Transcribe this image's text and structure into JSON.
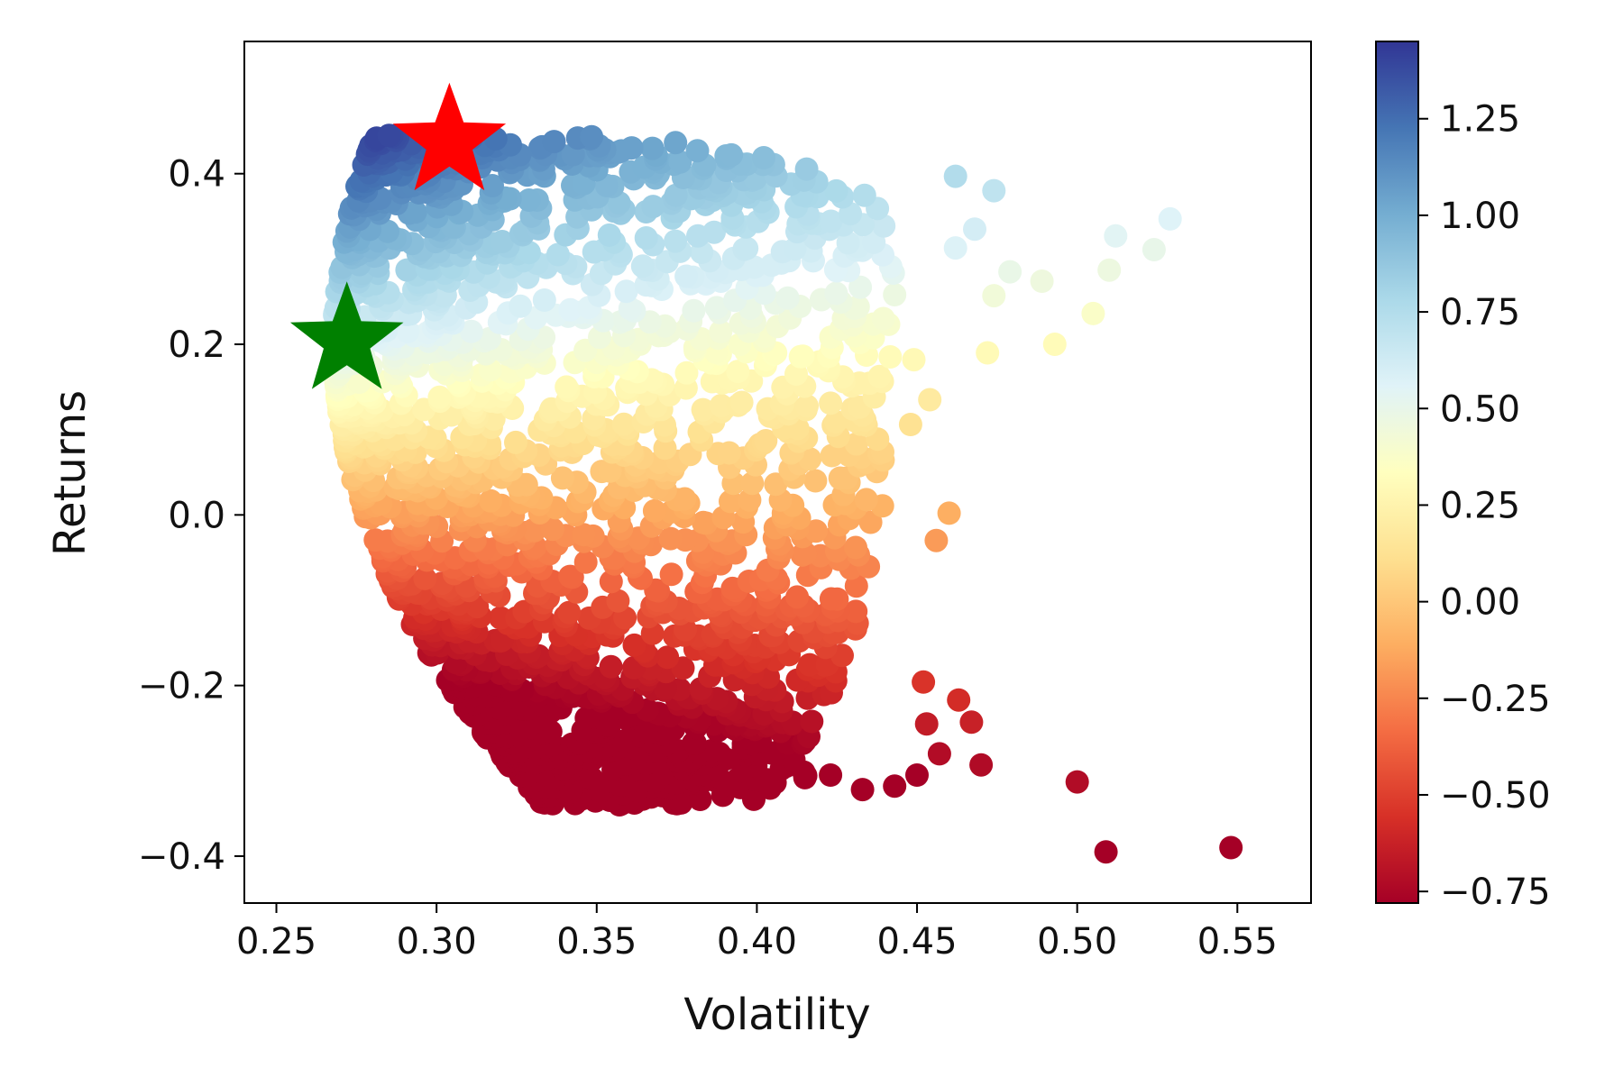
{
  "chart_data": {
    "type": "scatter",
    "title": "",
    "xlabel": "Volatility",
    "ylabel": "Returns",
    "xlim": [
      0.24,
      0.573
    ],
    "ylim": [
      -0.455,
      0.555
    ],
    "x_ticks": [
      0.25,
      0.3,
      0.35,
      0.4,
      0.45,
      0.5,
      0.55
    ],
    "x_tick_labels": [
      "0.25",
      "0.30",
      "0.35",
      "0.40",
      "0.45",
      "0.50",
      "0.55"
    ],
    "y_ticks": [
      -0.4,
      -0.2,
      0.0,
      0.2,
      0.4
    ],
    "y_tick_labels": [
      "−0.4",
      "−0.2",
      "0.0",
      "0.2",
      "0.4"
    ],
    "grid": false,
    "colorbar": {
      "colormap": "RdYlBu",
      "range": [
        -0.78,
        1.45
      ],
      "ticks": [
        -0.75,
        -0.5,
        -0.25,
        0.0,
        0.25,
        0.5,
        0.75,
        1.0,
        1.25
      ],
      "tick_labels": [
        "−0.75",
        "−0.50",
        "−0.25",
        "0.00",
        "0.25",
        "0.50",
        "0.75",
        "1.00",
        "1.25"
      ],
      "stops": [
        "#a50026",
        "#d73027",
        "#f46d43",
        "#fdae61",
        "#fee090",
        "#ffffbf",
        "#e0f3f8",
        "#abd9e9",
        "#74add1",
        "#4575b4",
        "#313695"
      ]
    },
    "points_summary": "Dense cloud of simulated portfolios; color encodes Sharpe ratio (approx. (return - 0.05)/volatility)",
    "outlier_points": [
      {
        "x": 0.548,
        "y": -0.39
      },
      {
        "x": 0.509,
        "y": -0.395
      },
      {
        "x": 0.5,
        "y": -0.313
      },
      {
        "x": 0.47,
        "y": -0.293
      },
      {
        "x": 0.452,
        "y": -0.196
      },
      {
        "x": 0.463,
        "y": -0.217
      },
      {
        "x": 0.467,
        "y": -0.243
      },
      {
        "x": 0.453,
        "y": -0.245
      },
      {
        "x": 0.457,
        "y": -0.28
      },
      {
        "x": 0.45,
        "y": -0.305
      },
      {
        "x": 0.443,
        "y": -0.318
      },
      {
        "x": 0.433,
        "y": -0.322
      },
      {
        "x": 0.415,
        "y": -0.308
      },
      {
        "x": 0.423,
        "y": -0.305
      },
      {
        "x": 0.529,
        "y": 0.347
      },
      {
        "x": 0.524,
        "y": 0.311
      },
      {
        "x": 0.512,
        "y": 0.327
      },
      {
        "x": 0.51,
        "y": 0.287
      },
      {
        "x": 0.505,
        "y": 0.236
      },
      {
        "x": 0.493,
        "y": 0.2
      },
      {
        "x": 0.489,
        "y": 0.274
      },
      {
        "x": 0.479,
        "y": 0.285
      },
      {
        "x": 0.474,
        "y": 0.38
      },
      {
        "x": 0.462,
        "y": 0.397
      },
      {
        "x": 0.468,
        "y": 0.335
      },
      {
        "x": 0.462,
        "y": 0.313
      },
      {
        "x": 0.474,
        "y": 0.257
      },
      {
        "x": 0.472,
        "y": 0.19
      },
      {
        "x": 0.46,
        "y": 0.002
      },
      {
        "x": 0.456,
        "y": -0.03
      },
      {
        "x": 0.454,
        "y": 0.135
      },
      {
        "x": 0.449,
        "y": 0.182
      },
      {
        "x": 0.448,
        "y": 0.106
      }
    ],
    "markers": [
      {
        "name": "max-sharpe-star",
        "x": 0.304,
        "y": 0.437,
        "color": "#ff0000"
      },
      {
        "name": "min-volatility-star",
        "x": 0.272,
        "y": 0.204,
        "color": "#008000"
      }
    ]
  }
}
